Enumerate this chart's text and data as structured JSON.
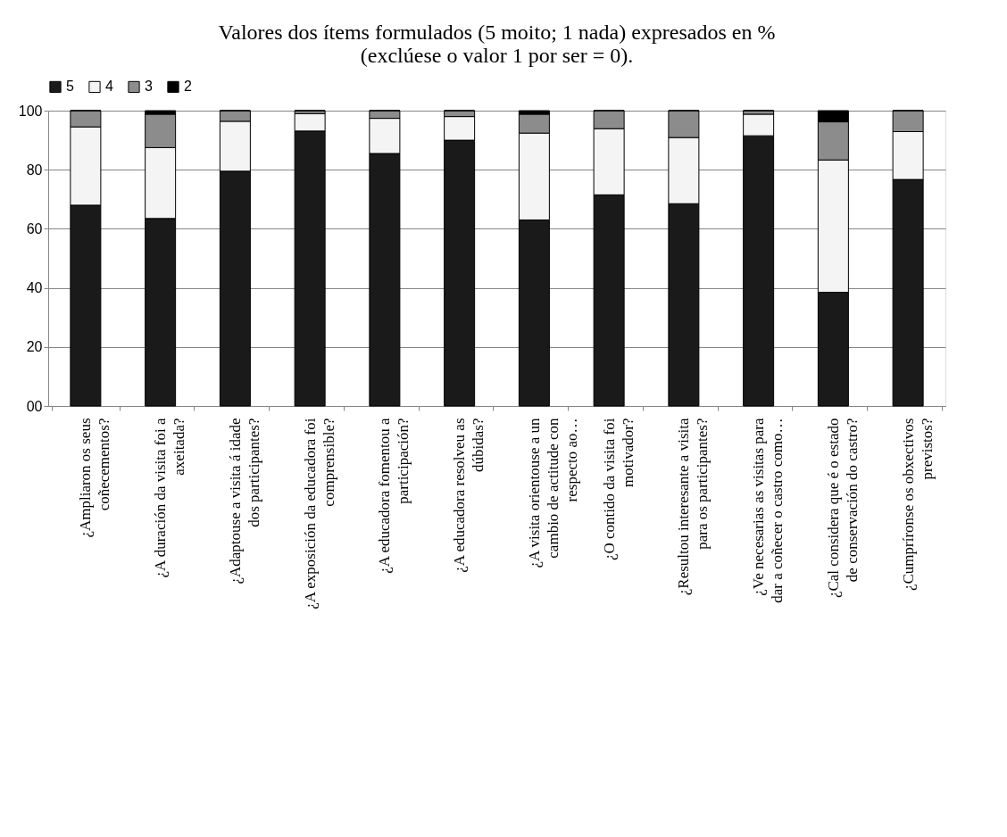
{
  "chart_data": {
    "type": "bar",
    "stacked": true,
    "title": [
      "Valores dos ítems formulados (5 moito; 1 nada) expresados en %",
      "(exclúese o valor 1 por ser = 0)."
    ],
    "categories": [
      "¿Ampliaron os seus coñecementos?",
      "¿A duración da visita foi a axeitada?",
      "¿Adaptouse a visita á idade dos participantes?",
      "¿A exposición da educadora foi comprensible?",
      "¿A educadora fomentou a participación?",
      "¿A educadora resolveu as dúbidas?",
      "¿A visita orientouse a un cambio de actitude con respecto ao…",
      "¿O contido da visita foi motivador?",
      "¿Resultou interesante a visita para os participantes?",
      "¿Ve necesarias as visitas para dar a coñecer o castro como…",
      "¿Cal considera que é o estado de conservación do castro?",
      "¿Cumpríronse os obxectivos previstos?"
    ],
    "series": [
      {
        "name": "5",
        "color": "#1a1a1a",
        "values": [
          68,
          63.5,
          79.5,
          93.1,
          85.5,
          90,
          63,
          71.5,
          68.5,
          91.5,
          38.5,
          76.7
        ]
      },
      {
        "name": "4",
        "color": "#f4f4f4",
        "values": [
          26.5,
          24,
          16.9,
          5.9,
          11.9,
          8,
          29.4,
          22.4,
          22.4,
          7.3,
          44.8,
          16.2
        ]
      },
      {
        "name": "3",
        "color": "#8c8c8c",
        "values": [
          5.5,
          11.3,
          3.6,
          1,
          2.6,
          2,
          6.4,
          6.1,
          9.1,
          1.2,
          12.9,
          7.1
        ]
      },
      {
        "name": "2",
        "color": "#000000",
        "values": [
          0,
          1.2,
          0,
          0,
          0,
          0,
          1.2,
          0,
          0,
          0,
          3.8,
          0
        ]
      }
    ],
    "ylim": [
      0,
      100
    ],
    "yticks": [
      {
        "value": 0,
        "label": "00"
      },
      20,
      40,
      60,
      80,
      100
    ],
    "grid": "y",
    "legend": "top"
  }
}
